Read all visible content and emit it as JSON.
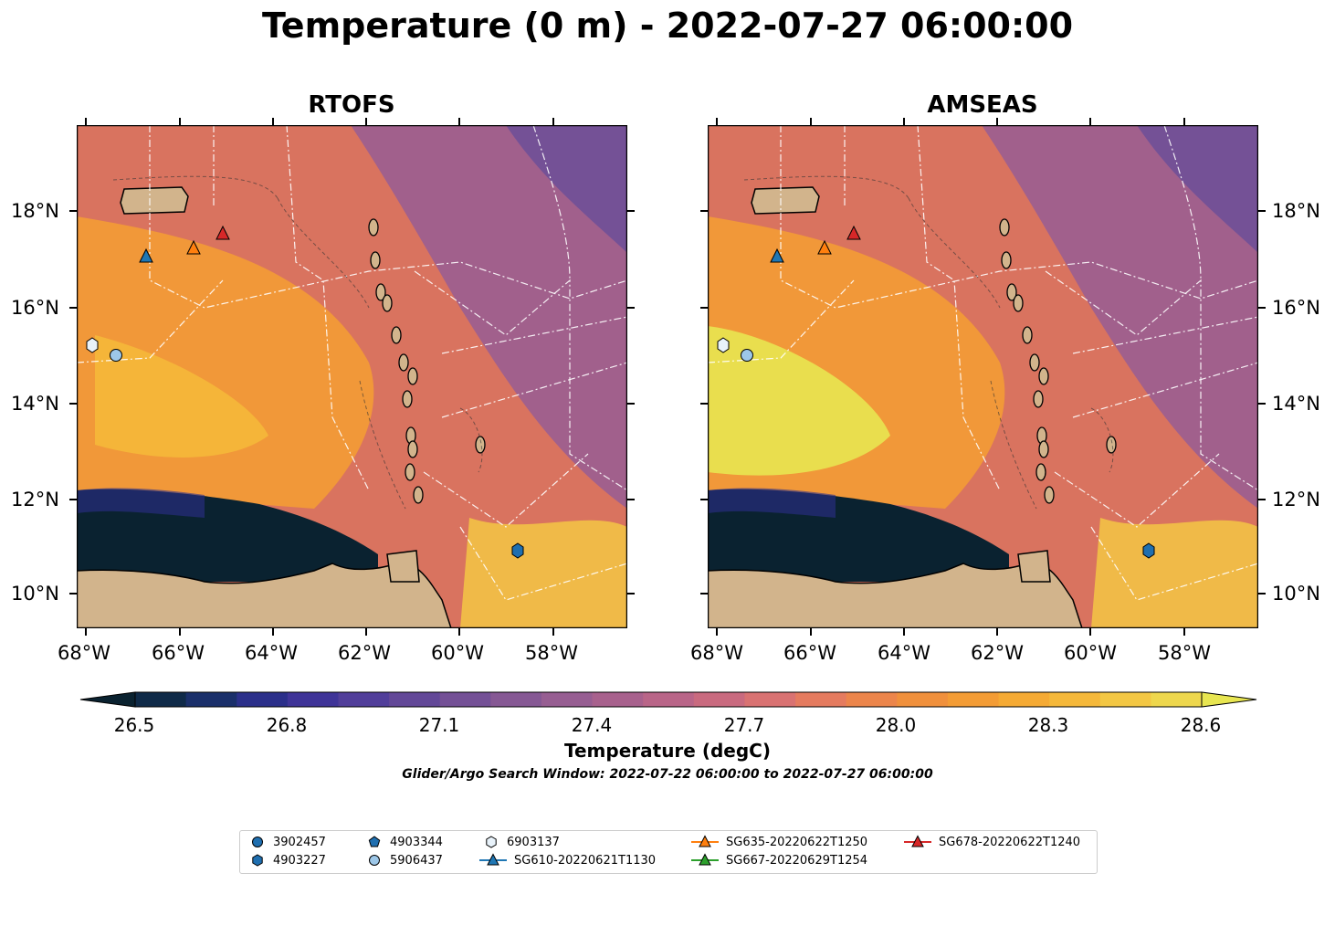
{
  "title": "Temperature (0 m) - 2022-07-27 06:00:00",
  "panels": [
    {
      "title": "RTOFS"
    },
    {
      "title": "AMSEAS"
    }
  ],
  "lat_ticks": [
    "18°N",
    "16°N",
    "14°N",
    "12°N",
    "10°N"
  ],
  "lon_ticks": [
    "68°W",
    "66°W",
    "64°W",
    "62°W",
    "60°W",
    "58°W"
  ],
  "colorbar": {
    "label": "Temperature (degC)",
    "ticks": [
      "26.5",
      "26.8",
      "27.1",
      "27.4",
      "27.7",
      "28.0",
      "28.3",
      "28.6"
    ],
    "colors": [
      "#0a2230",
      "#0f2a48",
      "#1a2f6a",
      "#2b2f8a",
      "#3f3498",
      "#513e9a",
      "#634898",
      "#745096",
      "#865894",
      "#975e92",
      "#a8618d",
      "#b96588",
      "#c96a7f",
      "#d97272",
      "#e57b5f",
      "#ec854b",
      "#f0903c",
      "#f39c35",
      "#f5aa34",
      "#f5b83a",
      "#f3c744",
      "#eed74d",
      "#e8e651"
    ]
  },
  "search_window": "Glider/Argo Search Window: 2022-07-22 06:00:00 to 2022-07-27 06:00:00",
  "legend": [
    {
      "label": "3902457",
      "marker": "circle",
      "color": "#1f6fb0"
    },
    {
      "label": "4903227",
      "marker": "hexagon",
      "color": "#1f6fb0"
    },
    {
      "label": "4903344",
      "marker": "pentagon",
      "color": "#1f6fb0"
    },
    {
      "label": "5906437",
      "marker": "circle",
      "color": "#9dc7e8"
    },
    {
      "label": "6903137",
      "marker": "hexagon",
      "color": "#e8f2fa"
    },
    {
      "label": "SG610-20220621T1130",
      "marker": "triangle",
      "color": "#1f77b4"
    },
    {
      "label": "SG635-20220622T1250",
      "marker": "triangle",
      "color": "#ff7f0e"
    },
    {
      "label": "SG667-20220629T1254",
      "marker": "triangle",
      "color": "#2ca02c"
    },
    {
      "label": "SG678-20220622T1240",
      "marker": "triangle",
      "color": "#d62728"
    }
  ]
}
